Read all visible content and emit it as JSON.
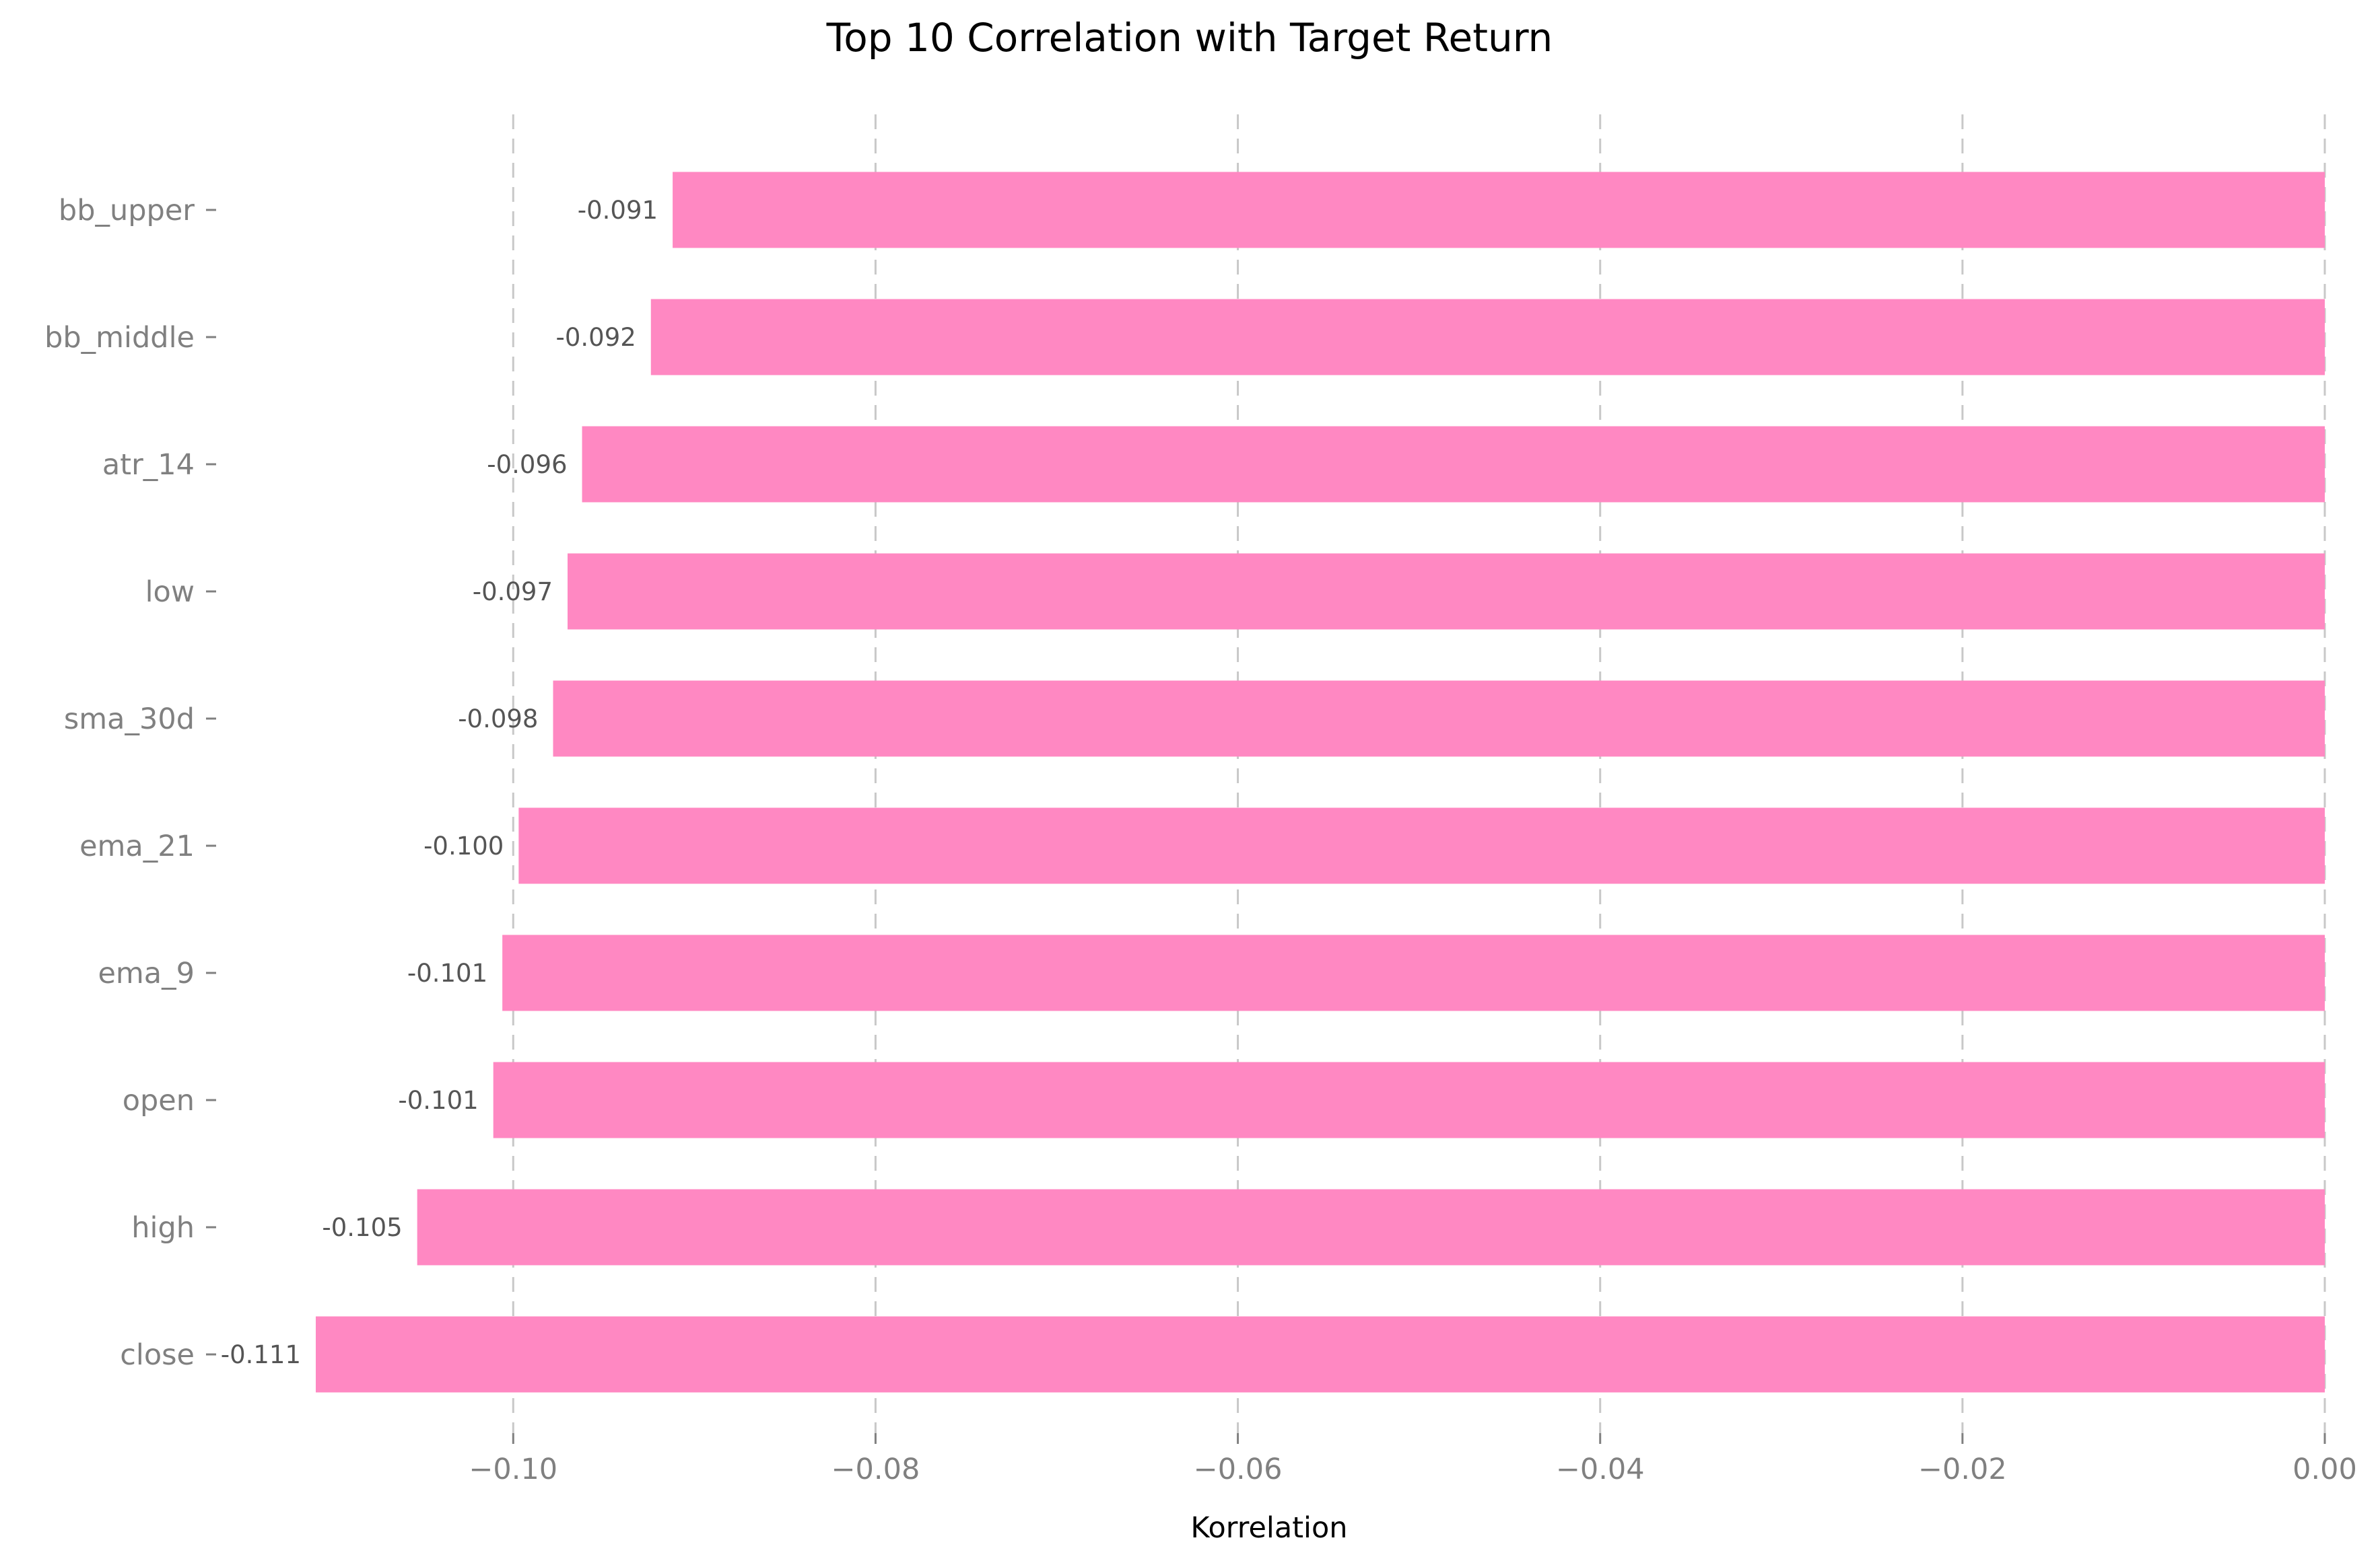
{
  "chart_data": {
    "type": "bar",
    "orientation": "horizontal",
    "title": "Top 10 Correlation with Target Return",
    "xlabel": "Korrelation",
    "ylabel": "",
    "categories": [
      "bb_upper",
      "bb_middle",
      "atr_14",
      "low",
      "sma_30d",
      "ema_21",
      "ema_9",
      "open",
      "high",
      "close"
    ],
    "values": [
      -0.0912,
      -0.0924,
      -0.0962,
      -0.097,
      -0.0978,
      -0.0997,
      -0.1006,
      -0.1011,
      -0.1053,
      -0.1109
    ],
    "value_labels": [
      "-0.091",
      "-0.092",
      "-0.096",
      "-0.097",
      "-0.098",
      "-0.100",
      "-0.101",
      "-0.101",
      "-0.105",
      "-0.111"
    ],
    "xticks": [
      -0.1,
      -0.08,
      -0.06,
      -0.04,
      -0.02,
      0.0
    ],
    "xtick_labels": [
      "−0.10",
      "−0.08",
      "−0.06",
      "−0.04",
      "−0.02",
      "0.00"
    ],
    "xlim": [
      -0.1109,
      0.0
    ],
    "grid": "x-dashed",
    "colors": {
      "bar": "#ff88c2",
      "grid": "#c8c8c8",
      "tick_text": "#808080"
    }
  }
}
